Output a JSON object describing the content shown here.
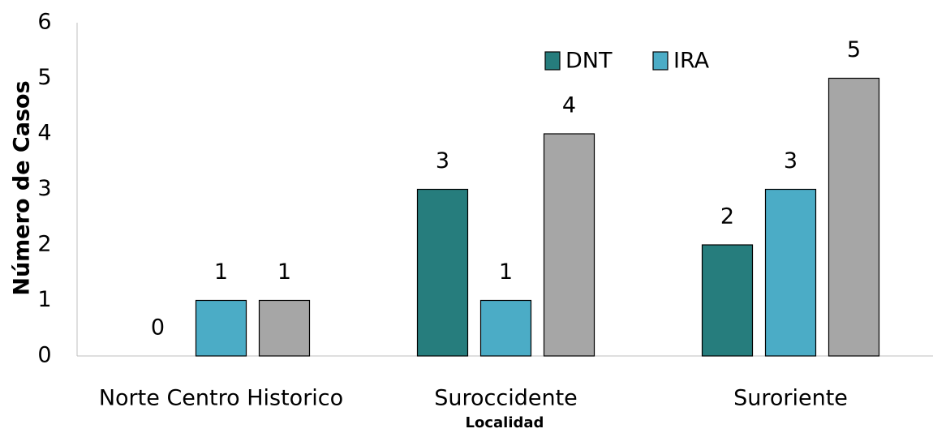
{
  "chart_data": {
    "type": "bar",
    "categories": [
      "Norte Centro Historico",
      "Suroccidente",
      "Suroriente"
    ],
    "series": [
      {
        "name": "DNT",
        "color": "#267d7d",
        "values": [
          0,
          3,
          2
        ]
      },
      {
        "name": "IRA",
        "color": "#4bacc6",
        "values": [
          1,
          1,
          3
        ]
      },
      {
        "color": "#a6a6a6",
        "values": [
          1,
          4,
          5
        ]
      }
    ],
    "x_label": "Localidad",
    "y_label": "Número de Casos",
    "ylim": [
      0,
      6
    ],
    "yticks": [
      0,
      1,
      2,
      3,
      4,
      5,
      6
    ],
    "grid": false,
    "legend": "top-right"
  }
}
